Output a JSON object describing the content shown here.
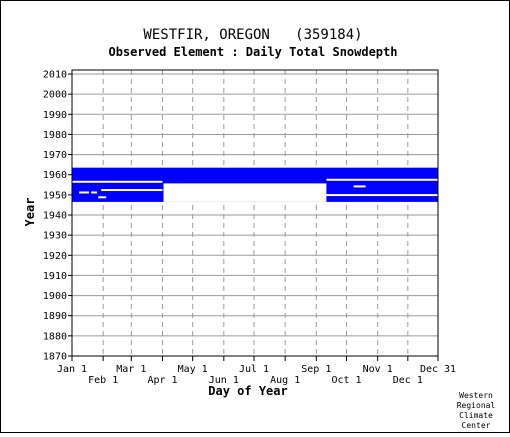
{
  "chart_data": {
    "type": "bar",
    "title": "WESTFIR, OREGON   (359184)",
    "subtitle": "Observed Element : Daily Total Snowdepth",
    "xlabel": "Day of Year",
    "ylabel": "Year",
    "credit": [
      "Western",
      "Regional",
      "Climate",
      "Center"
    ],
    "ylim": [
      1870,
      2012
    ],
    "xlim": [
      1,
      365
    ],
    "grid": true,
    "bar_color": "#0000ff",
    "x_ticks_top_row": [
      {
        "label": "Jan 1",
        "day": 1
      },
      {
        "label": "Mar 1",
        "day": 60
      },
      {
        "label": "May 1",
        "day": 121
      },
      {
        "label": "Jul 1",
        "day": 182
      },
      {
        "label": "Sep 1",
        "day": 244
      },
      {
        "label": "Nov 1",
        "day": 305
      },
      {
        "label": "Dec 31",
        "day": 365
      }
    ],
    "x_ticks_bottom_row": [
      {
        "label": "Feb 1",
        "day": 32
      },
      {
        "label": "Apr 1",
        "day": 91
      },
      {
        "label": "Jun 1",
        "day": 152
      },
      {
        "label": "Aug 1",
        "day": 213
      },
      {
        "label": "Oct 1",
        "day": 274
      },
      {
        "label": "Dec 1",
        "day": 335
      }
    ],
    "y_ticks": [
      1870,
      1880,
      1890,
      1900,
      1910,
      1920,
      1930,
      1940,
      1950,
      1960,
      1970,
      1980,
      1990,
      2000,
      2010
    ],
    "records": [
      {
        "year_from": 1946.5,
        "year_to": 1963.5,
        "day_from": 1,
        "day_to": 365
      },
      {
        "year_from": 1946.5,
        "year_to": 1955.7,
        "day_from": 92,
        "day_to": 254,
        "missing": true
      }
    ],
    "missing_strips": [
      {
        "year": 1956.5,
        "day_from": 1,
        "day_to": 91
      },
      {
        "year": 1952.4,
        "day_from": 30,
        "day_to": 91
      },
      {
        "year": 1951.2,
        "day_from": 8,
        "day_to": 18
      },
      {
        "year": 1951.2,
        "day_from": 20,
        "day_to": 26
      },
      {
        "year": 1948.8,
        "day_from": 27,
        "day_to": 35
      },
      {
        "year": 1957.5,
        "day_from": 254,
        "day_to": 365
      },
      {
        "year": 1954.2,
        "day_from": 281,
        "day_to": 293
      },
      {
        "year": 1949.9,
        "day_from": 254,
        "day_to": 365
      }
    ]
  }
}
